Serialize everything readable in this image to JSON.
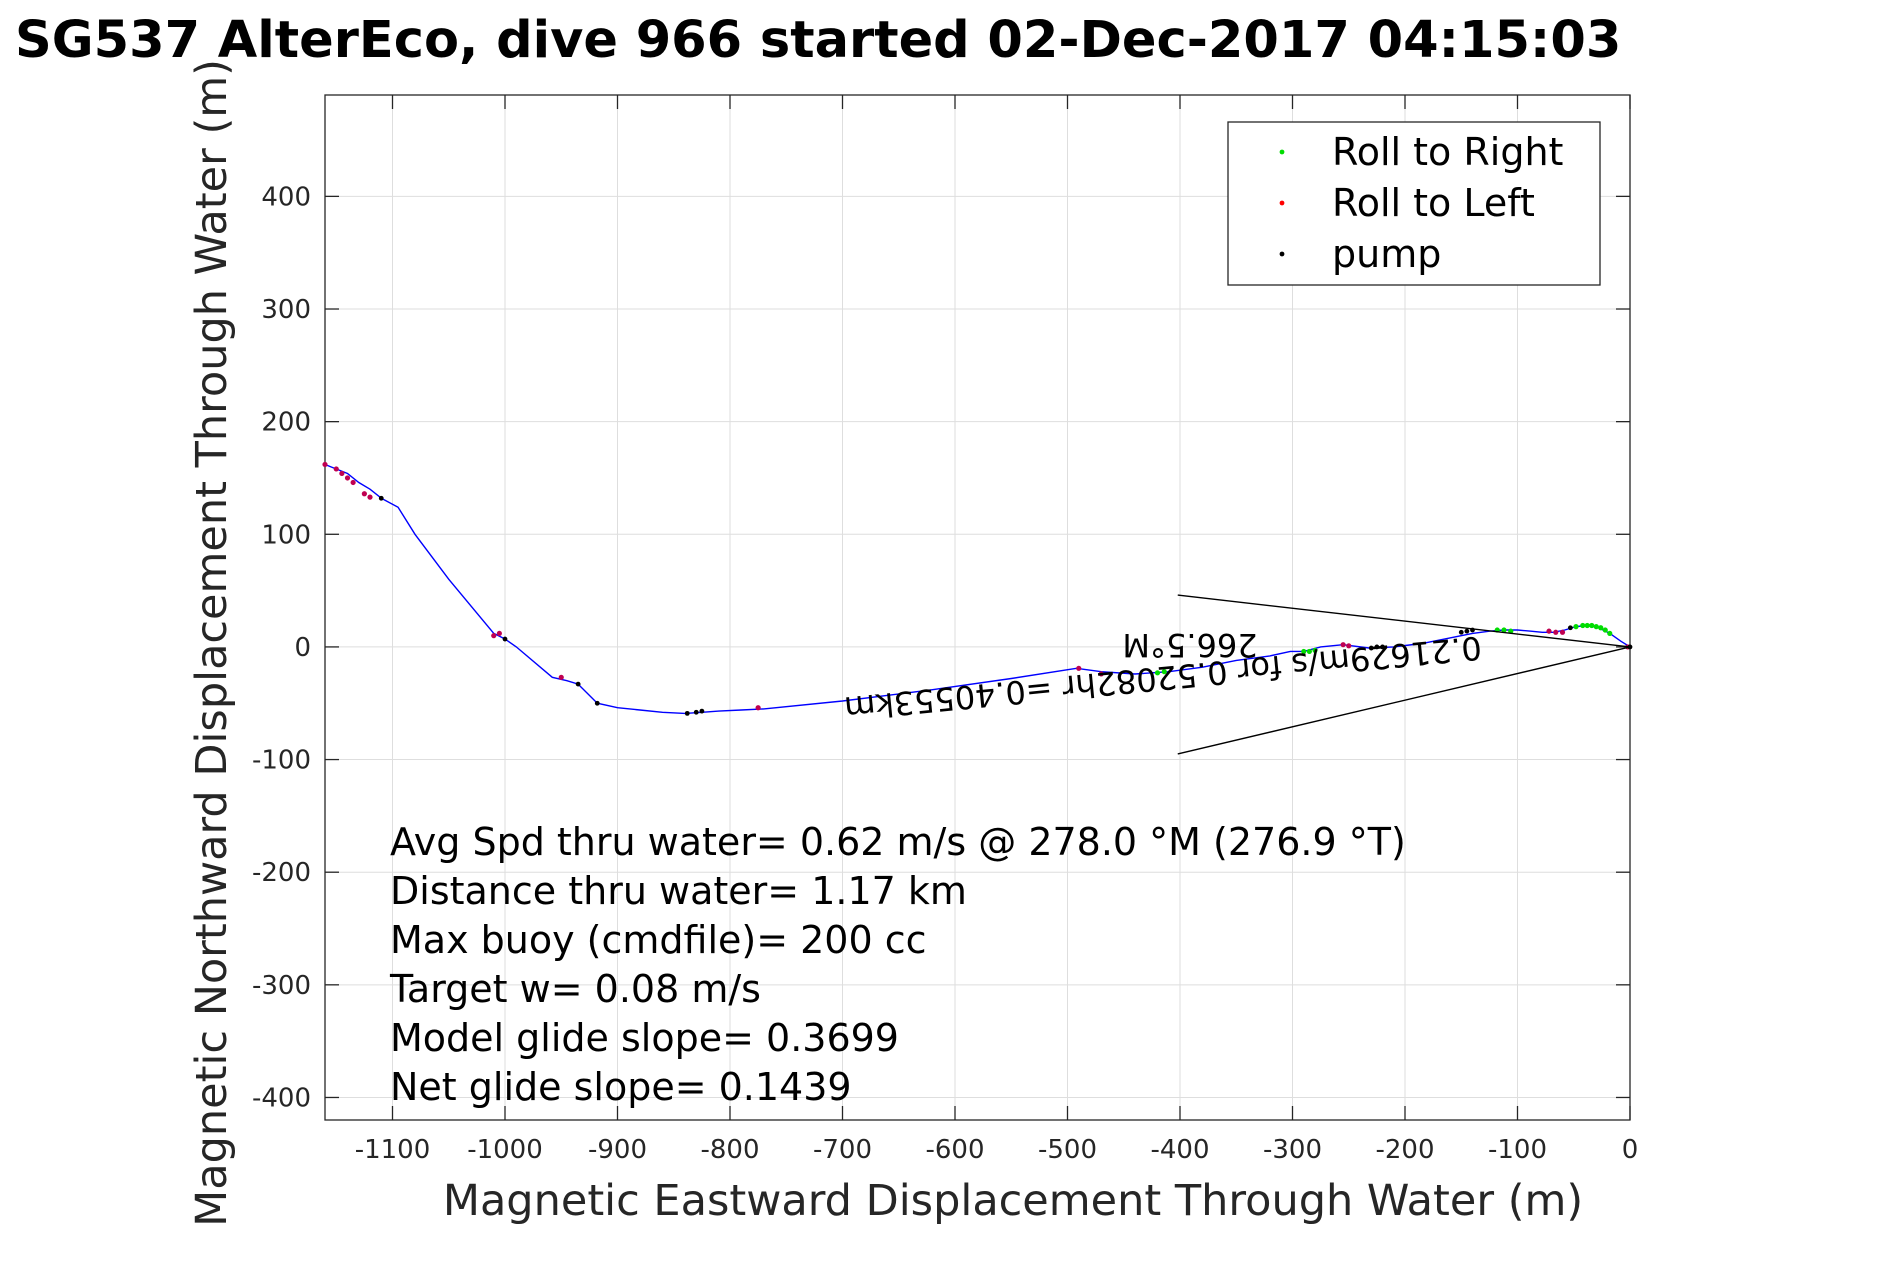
{
  "chart_data": {
    "type": "line",
    "title": "SG537 AlterEco, dive 966 started 02-Dec-2017 04:15:03",
    "xlabel": "Magnetic Eastward Displacement Through Water (m)",
    "ylabel": "Magnetic Northward Displacement Through Water (m)",
    "xlim": [
      -1160,
      0
    ],
    "ylim": [
      -420,
      490
    ],
    "xticks": [
      -1100,
      -1000,
      -900,
      -800,
      -700,
      -600,
      -500,
      -400,
      -300,
      -200,
      -100,
      0
    ],
    "yticks": [
      -400,
      -300,
      -200,
      -100,
      0,
      100,
      200,
      300,
      400
    ],
    "grid": true,
    "legend": {
      "position": "top-right",
      "entries": [
        {
          "label": "Roll to Right",
          "color": "#00dd00"
        },
        {
          "label": "Roll to Left",
          "color": "#ff0000"
        },
        {
          "label": "pump",
          "color": "#000000"
        }
      ]
    },
    "track_color": "#0000ff",
    "track": {
      "x": [
        0,
        -8,
        -18,
        -28,
        -38,
        -48,
        -58,
        -68,
        -78,
        -88,
        -100,
        -112,
        -125,
        -140,
        -160,
        -185,
        -210,
        -232,
        -255,
        -275,
        -290,
        -302,
        -320,
        -350,
        -380,
        -410,
        -440,
        -470,
        -492,
        -550,
        -620,
        -700,
        -770,
        -790,
        -810,
        -825,
        -840,
        -860,
        -880,
        -900,
        -918,
        -935,
        -945,
        -958,
        -990,
        -1000,
        -1010,
        -1050,
        -1080,
        -1095,
        -1110,
        -1120,
        -1130,
        -1140,
        -1150,
        -1160
      ],
      "y": [
        0,
        5,
        12,
        17,
        19,
        18,
        15,
        13,
        13,
        14,
        15,
        15,
        14,
        12,
        8,
        3,
        0,
        -1,
        2,
        0,
        -4,
        -4,
        -8,
        -12,
        -18,
        -22,
        -24,
        -22,
        -19,
        -28,
        -38,
        -48,
        -55,
        -56,
        -57,
        -58,
        -59,
        -58,
        -56,
        -54,
        -50,
        -33,
        -30,
        -27,
        0,
        7,
        12,
        60,
        100,
        124,
        132,
        140,
        146,
        154,
        158,
        162
      ]
    },
    "roll_right": {
      "x": [
        -48,
        -42,
        -38,
        -34,
        -30,
        -26,
        -22,
        -18,
        -118,
        -112,
        -106,
        -290,
        -285,
        -280,
        -420,
        -414
      ],
      "y": [
        18,
        19,
        19,
        19,
        18,
        17,
        15,
        12,
        15,
        15,
        14,
        -4,
        -4,
        -3,
        -23,
        -22
      ]
    },
    "roll_left": {
      "x": [
        -2,
        -72,
        -66,
        -60,
        -255,
        -250,
        -470,
        -490,
        -775,
        -950,
        -1005,
        -1010,
        -1120,
        -1125,
        -1135,
        -1140,
        -1145,
        -1150,
        -1160
      ],
      "y": [
        0,
        14,
        13,
        13,
        2,
        1,
        -24,
        -19,
        -54,
        -27,
        12,
        10,
        133,
        136,
        146,
        150,
        154,
        158,
        162
      ],
      "series_point_color": "#c00050"
    },
    "pump": {
      "x": [
        0,
        -53,
        -140,
        -145,
        -150,
        -220,
        -225,
        -230,
        -918,
        -935,
        -825,
        -830,
        -838,
        -1000,
        -1110
      ],
      "y": [
        0,
        17,
        15,
        14,
        13,
        0,
        0,
        -1,
        -50,
        -33,
        -57,
        -58,
        -59,
        7,
        132
      ]
    },
    "current_arrow": {
      "shaft": {
        "x": [
          0,
          -402
        ],
        "y": [
          0,
          -95
        ]
      },
      "head_line": {
        "x": [
          0,
          -402
        ],
        "y": [
          0,
          46
        ]
      }
    },
    "current_label": "0.21629m/s for 0.52082hr =0.40553km",
    "current_direction_label": "266.5°M",
    "annotations": [
      "Avg Spd thru water=  0.62 m/s @ 278.0 °M (276.9 °T)",
      "Distance thru water=  1.17 km",
      "Max buoy (cmdfile)= 200 cc",
      "Target w= 0.08 m/s",
      "Model glide slope= 0.3699",
      "Net glide slope= 0.1439"
    ]
  }
}
